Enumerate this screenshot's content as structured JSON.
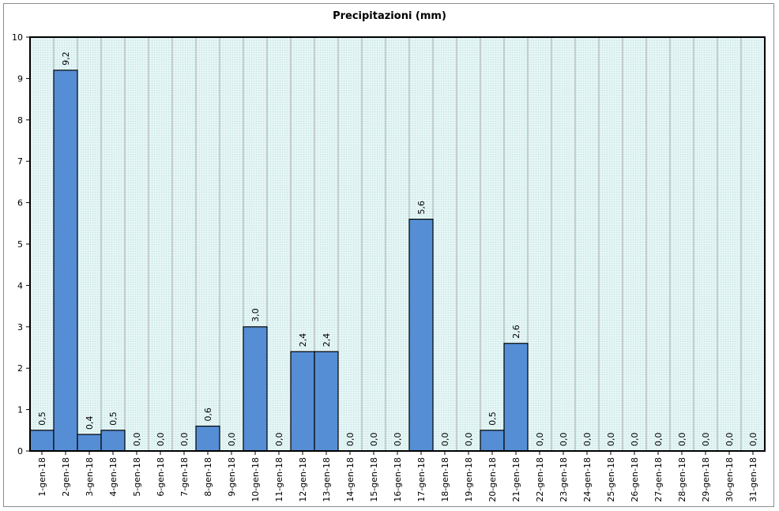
{
  "chart_data": {
    "type": "bar",
    "title": "Precipitazioni (mm)",
    "xlabel": "",
    "ylabel": "",
    "ylim": [
      0,
      10
    ],
    "yticks": [
      0,
      1,
      2,
      3,
      4,
      5,
      6,
      7,
      8,
      9,
      10
    ],
    "grid": true,
    "categories": [
      "1-gen-18",
      "2-gen-18",
      "3-gen-18",
      "4-gen-18",
      "5-gen-18",
      "6-gen-18",
      "7-gen-18",
      "8-gen-18",
      "9-gen-18",
      "10-gen-18",
      "11-gen-18",
      "12-gen-18",
      "13-gen-18",
      "14-gen-18",
      "15-gen-18",
      "16-gen-18",
      "17-gen-18",
      "18-gen-18",
      "19-gen-18",
      "20-gen-18",
      "21-gen-18",
      "22-gen-18",
      "23-gen-18",
      "24-gen-18",
      "25-gen-18",
      "26-gen-18",
      "27-gen-18",
      "28-gen-18",
      "29-gen-18",
      "30-gen-18",
      "31-gen-18"
    ],
    "values": [
      0.5,
      9.2,
      0.4,
      0.5,
      0.0,
      0.0,
      0.0,
      0.6,
      0.0,
      3.0,
      0.0,
      2.4,
      2.4,
      0.0,
      0.0,
      0.0,
      5.6,
      0.0,
      0.0,
      0.5,
      2.6,
      0.0,
      0.0,
      0.0,
      0.0,
      0.0,
      0.0,
      0.0,
      0.0,
      0.0,
      0.0
    ],
    "data_labels": [
      "0,5",
      "9,2",
      "0,4",
      "0,5",
      "0,0",
      "0,0",
      "0,0",
      "0,6",
      "0,0",
      "3,0",
      "0,0",
      "2,4",
      "2,4",
      "0,0",
      "0,0",
      "0,0",
      "5,6",
      "0,0",
      "0,0",
      "0,5",
      "2,6",
      "0,0",
      "0,0",
      "0,0",
      "0,0",
      "0,0",
      "0,0",
      "0,0",
      "0,0",
      "0,0",
      "0,0"
    ],
    "colors": {
      "bar_fill": "#558ed5",
      "bar_stroke": "#000000",
      "plot_bg": "#dff3f3",
      "grid": "#a6a6a6"
    }
  }
}
